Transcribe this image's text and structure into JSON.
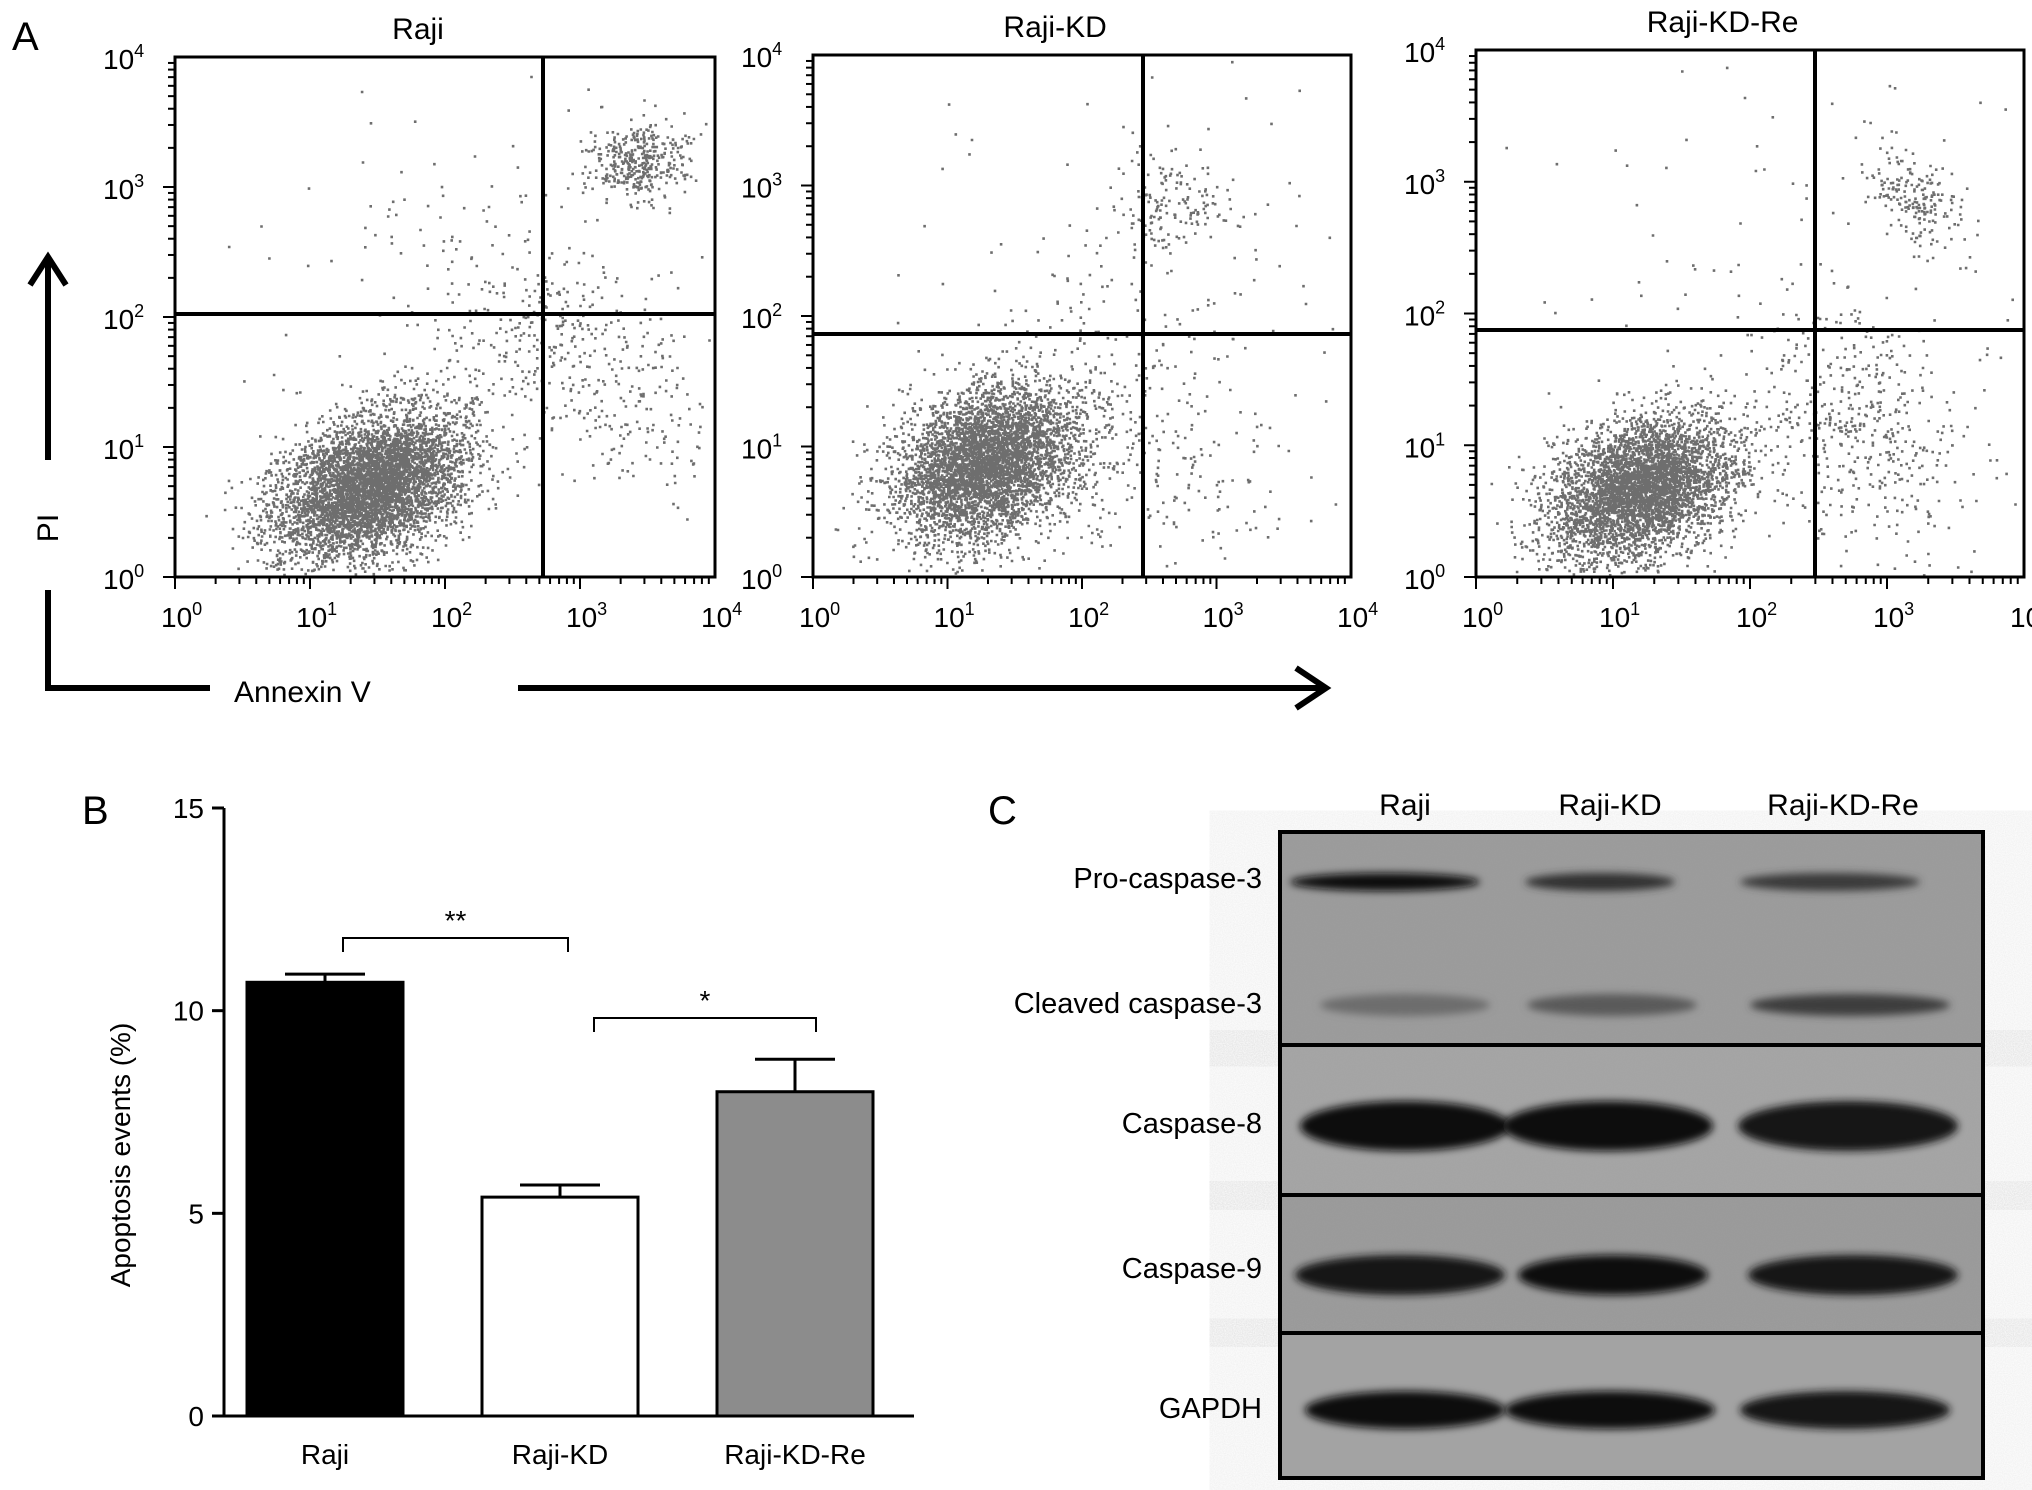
{
  "panel_labels": {
    "a": "A",
    "b": "B",
    "c": "C"
  },
  "panel_a": {
    "x_axis_label": "Annexin V",
    "y_axis_label": "PI",
    "tick_base": "10",
    "tick_exponents": [
      "0",
      "1",
      "2",
      "3",
      "4"
    ],
    "plots": [
      {
        "title": "Raji"
      },
      {
        "title": "Raji-KD"
      },
      {
        "title": "Raji-KD-Re"
      }
    ]
  },
  "chart_data": {
    "type": "bar",
    "categories": [
      "Raji",
      "Raji-KD",
      "Raji-KD-Re"
    ],
    "values": [
      10.7,
      5.4,
      8.0
    ],
    "errors": [
      0.2,
      0.3,
      0.8
    ],
    "colors": [
      "#000000",
      "#ffffff",
      "#8c8c8c"
    ],
    "ylabel": "Apoptosis events (%)",
    "ylim": [
      0,
      15
    ],
    "yticks": [
      0,
      5,
      10,
      15
    ],
    "significance": [
      {
        "from": 0,
        "to": 1,
        "label": "**"
      },
      {
        "from": 1,
        "to": 2,
        "label": "*"
      }
    ]
  },
  "panel_c": {
    "lanes": [
      "Raji",
      "Raji-KD",
      "Raji-KD-Re"
    ],
    "bands": [
      "Pro-caspase-3",
      "Cleaved caspase-3",
      "Caspase-8",
      "Caspase-9",
      "GAPDH"
    ]
  }
}
